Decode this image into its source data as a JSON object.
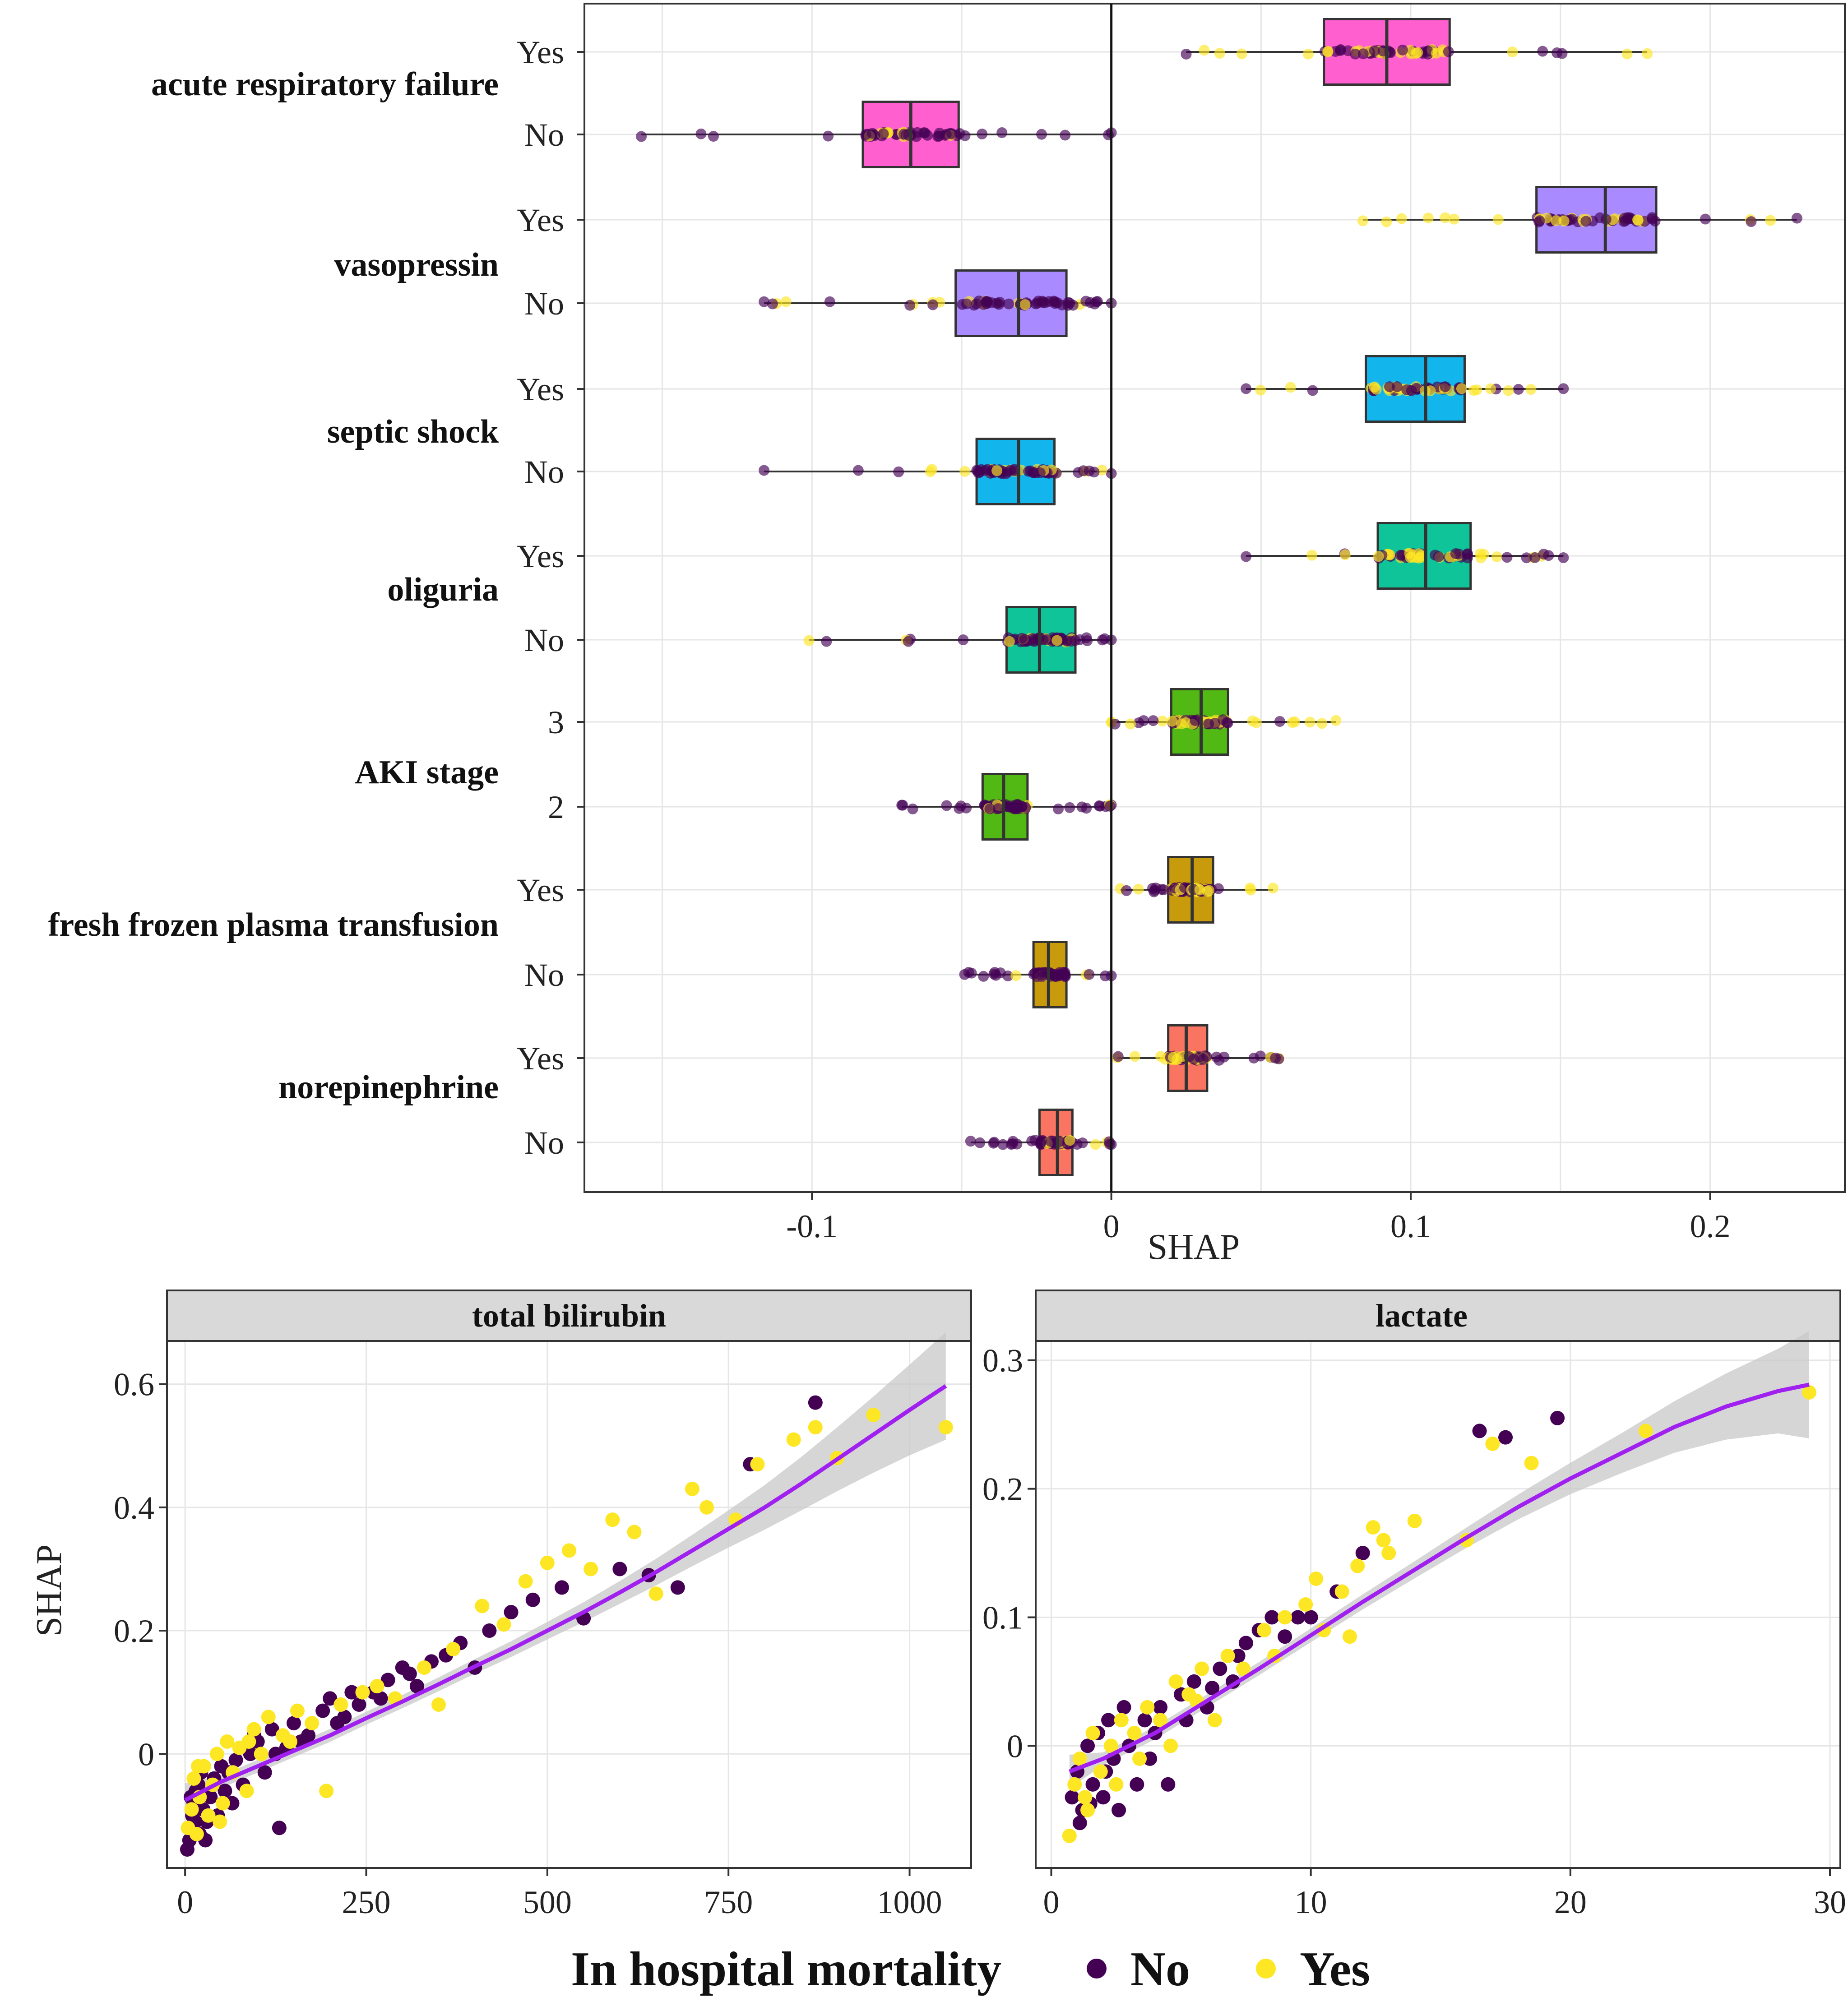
{
  "colors": {
    "no": "#440154",
    "yes": "#fde725",
    "smooth": "#a020f0",
    "band": "#c8c8c8",
    "strip": "#d9d9d9",
    "box_arf": "#ff5fcf",
    "box_vaso": "#a98bff",
    "box_septic": "#12b6ec",
    "box_oliguria": "#10c49a",
    "box_aki": "#52b813",
    "box_ffp": "#c89b0c",
    "box_norepi": "#fa7462"
  },
  "chart_data": [
    {
      "type": "box",
      "xlabel": "SHAP",
      "xlim": [
        -0.176,
        0.245
      ],
      "xticks": [
        -0.1,
        0,
        0.1,
        0.2
      ],
      "xtick_labels": [
        "-0.1",
        "0",
        "0.1",
        "0.2"
      ],
      "features": [
        {
          "name": "acute respiratory failure",
          "color_key": "box_arf",
          "levels": [
            {
              "label": "Yes",
              "min": 0.025,
              "q1": 0.071,
              "median": 0.092,
              "q3": 0.113,
              "max": 0.179
            },
            {
              "label": "No",
              "min": -0.157,
              "q1": -0.083,
              "median": -0.067,
              "q3": -0.051,
              "max": 0.0
            }
          ]
        },
        {
          "name": "vasopressin",
          "color_key": "box_vaso",
          "levels": [
            {
              "label": "Yes",
              "min": 0.084,
              "q1": 0.142,
              "median": 0.165,
              "q3": 0.182,
              "max": 0.229
            },
            {
              "label": "No",
              "min": -0.116,
              "q1": -0.052,
              "median": -0.031,
              "q3": -0.015,
              "max": 0.0
            }
          ]
        },
        {
          "name": "septic shock",
          "color_key": "box_septic",
          "levels": [
            {
              "label": "Yes",
              "min": 0.045,
              "q1": 0.085,
              "median": 0.105,
              "q3": 0.118,
              "max": 0.151
            },
            {
              "label": "No",
              "min": -0.116,
              "q1": -0.045,
              "median": -0.031,
              "q3": -0.019,
              "max": 0.0
            }
          ]
        },
        {
          "name": "oliguria",
          "color_key": "box_oliguria",
          "levels": [
            {
              "label": "Yes",
              "min": 0.045,
              "q1": 0.089,
              "median": 0.105,
              "q3": 0.12,
              "max": 0.151
            },
            {
              "label": "No",
              "min": -0.101,
              "q1": -0.035,
              "median": -0.024,
              "q3": -0.012,
              "max": 0.0
            }
          ]
        },
        {
          "name": "AKI stage",
          "color_key": "box_aki",
          "levels": [
            {
              "label": "3",
              "min": 0.0,
              "q1": 0.02,
              "median": 0.03,
              "q3": 0.039,
              "max": 0.075
            },
            {
              "label": "2",
              "min": -0.07,
              "q1": -0.043,
              "median": -0.036,
              "q3": -0.028,
              "max": 0.0
            }
          ]
        },
        {
          "name": "fresh frozen plasma transfusion",
          "color_key": "box_ffp",
          "levels": [
            {
              "label": "Yes",
              "min": 0.003,
              "q1": 0.019,
              "median": 0.027,
              "q3": 0.034,
              "max": 0.054
            },
            {
              "label": "No",
              "min": -0.049,
              "q1": -0.026,
              "median": -0.021,
              "q3": -0.015,
              "max": 0.0
            }
          ]
        },
        {
          "name": "norepinephrine",
          "color_key": "box_norepi",
          "levels": [
            {
              "label": "Yes",
              "min": 0.002,
              "q1": 0.019,
              "median": 0.025,
              "q3": 0.032,
              "max": 0.056
            },
            {
              "label": "No",
              "min": -0.047,
              "q1": -0.024,
              "median": -0.018,
              "q3": -0.013,
              "max": 0.0
            }
          ]
        }
      ]
    },
    {
      "type": "scatter",
      "title": "total bilirubin",
      "xlabel": "",
      "ylabel": "SHAP",
      "xlim": [
        -25,
        1085
      ],
      "ylim": [
        -0.185,
        0.67
      ],
      "xticks": [
        0,
        250,
        500,
        750,
        1000
      ],
      "xtick_labels": [
        "0",
        "250",
        "500",
        "750",
        "1000"
      ],
      "yticks": [
        0,
        0.2,
        0.4,
        0.6
      ],
      "ytick_labels": [
        "0",
        "0.2",
        "0.4",
        "0.6"
      ],
      "smooth": {
        "x": [
          0,
          50,
          100,
          150,
          200,
          250,
          300,
          350,
          400,
          450,
          500,
          550,
          600,
          650,
          700,
          750,
          800,
          850,
          900,
          950,
          1000,
          1050
        ],
        "y": [
          -0.075,
          -0.045,
          -0.02,
          0.005,
          0.03,
          0.058,
          0.085,
          0.113,
          0.142,
          0.17,
          0.2,
          0.23,
          0.262,
          0.295,
          0.33,
          0.365,
          0.4,
          0.438,
          0.478,
          0.518,
          0.558,
          0.597
        ]
      },
      "points_no": [
        [
          3,
          -0.155
        ],
        [
          6,
          -0.14
        ],
        [
          8,
          -0.12
        ],
        [
          10,
          -0.1
        ],
        [
          12,
          -0.08
        ],
        [
          15,
          -0.06
        ],
        [
          18,
          -0.05
        ],
        [
          20,
          -0.13
        ],
        [
          25,
          -0.09
        ],
        [
          30,
          -0.11
        ],
        [
          35,
          -0.07
        ],
        [
          40,
          -0.04
        ],
        [
          45,
          -0.1
        ],
        [
          50,
          -0.02
        ],
        [
          55,
          -0.06
        ],
        [
          60,
          -0.03
        ],
        [
          70,
          -0.01
        ],
        [
          80,
          -0.05
        ],
        [
          90,
          0.0
        ],
        [
          100,
          0.02
        ],
        [
          110,
          -0.03
        ],
        [
          120,
          0.04
        ],
        [
          130,
          -0.12
        ],
        [
          140,
          0.01
        ],
        [
          150,
          0.05
        ],
        [
          170,
          0.03
        ],
        [
          190,
          0.07
        ],
        [
          200,
          0.09
        ],
        [
          220,
          0.06
        ],
        [
          240,
          0.08
        ],
        [
          260,
          0.1
        ],
        [
          280,
          0.12
        ],
        [
          300,
          0.14
        ],
        [
          320,
          0.11
        ],
        [
          340,
          0.15
        ],
        [
          360,
          0.16
        ],
        [
          380,
          0.18
        ],
        [
          400,
          0.14
        ],
        [
          420,
          0.2
        ],
        [
          450,
          0.23
        ],
        [
          480,
          0.25
        ],
        [
          520,
          0.27
        ],
        [
          550,
          0.22
        ],
        [
          600,
          0.3
        ],
        [
          640,
          0.29
        ],
        [
          680,
          0.27
        ],
        [
          780,
          0.47
        ],
        [
          870,
          0.57
        ],
        [
          8,
          -0.07
        ],
        [
          14,
          -0.11
        ],
        [
          22,
          -0.03
        ],
        [
          28,
          -0.14
        ],
        [
          65,
          -0.08
        ],
        [
          95,
          0.03
        ],
        [
          125,
          0.0
        ],
        [
          160,
          0.02
        ],
        [
          210,
          0.05
        ],
        [
          230,
          0.1
        ],
        [
          270,
          0.09
        ],
        [
          310,
          0.13
        ]
      ],
      "points_yes": [
        [
          4,
          -0.12
        ],
        [
          9,
          -0.09
        ],
        [
          12,
          -0.04
        ],
        [
          16,
          -0.13
        ],
        [
          20,
          -0.07
        ],
        [
          26,
          -0.02
        ],
        [
          32,
          -0.1
        ],
        [
          38,
          -0.05
        ],
        [
          44,
          0.0
        ],
        [
          52,
          -0.08
        ],
        [
          58,
          0.02
        ],
        [
          66,
          -0.03
        ],
        [
          75,
          0.01
        ],
        [
          85,
          -0.06
        ],
        [
          95,
          0.04
        ],
        [
          105,
          0.0
        ],
        [
          115,
          0.06
        ],
        [
          135,
          0.03
        ],
        [
          155,
          0.07
        ],
        [
          175,
          0.05
        ],
        [
          195,
          -0.06
        ],
        [
          215,
          0.08
        ],
        [
          245,
          0.1
        ],
        [
          265,
          0.11
        ],
        [
          290,
          0.09
        ],
        [
          330,
          0.14
        ],
        [
          350,
          0.08
        ],
        [
          370,
          0.17
        ],
        [
          410,
          0.24
        ],
        [
          440,
          0.21
        ],
        [
          470,
          0.28
        ],
        [
          500,
          0.31
        ],
        [
          530,
          0.33
        ],
        [
          560,
          0.3
        ],
        [
          590,
          0.38
        ],
        [
          620,
          0.36
        ],
        [
          650,
          0.26
        ],
        [
          700,
          0.43
        ],
        [
          720,
          0.4
        ],
        [
          760,
          0.38
        ],
        [
          790,
          0.47
        ],
        [
          840,
          0.51
        ],
        [
          870,
          0.53
        ],
        [
          900,
          0.48
        ],
        [
          950,
          0.55
        ],
        [
          1050,
          0.53
        ],
        [
          18,
          -0.02
        ],
        [
          48,
          -0.11
        ],
        [
          88,
          0.02
        ],
        [
          145,
          0.02
        ]
      ]
    },
    {
      "type": "scatter",
      "title": "lactate",
      "xlabel": "",
      "ylabel": "",
      "xlim": [
        -0.6,
        30.4
      ],
      "ylim": [
        -0.095,
        0.315
      ],
      "xticks": [
        0,
        10,
        20,
        30
      ],
      "xtick_labels": [
        "0",
        "10",
        "20",
        "30"
      ],
      "yticks": [
        0,
        0.1,
        0.2,
        0.3
      ],
      "ytick_labels": [
        "0",
        "0.1",
        "0.2",
        "0.3"
      ],
      "smooth": {
        "x": [
          0.7,
          2,
          4,
          6,
          8,
          10,
          12,
          14,
          16,
          18,
          20,
          22,
          24,
          26,
          28,
          29.2
        ],
        "y": [
          -0.02,
          -0.01,
          0.01,
          0.035,
          0.06,
          0.086,
          0.112,
          0.137,
          0.162,
          0.186,
          0.208,
          0.228,
          0.248,
          0.264,
          0.276,
          0.281
        ]
      },
      "points_no": [
        [
          0.8,
          -0.04
        ],
        [
          1,
          -0.02
        ],
        [
          1.2,
          -0.05
        ],
        [
          1.4,
          0.0
        ],
        [
          1.6,
          -0.03
        ],
        [
          1.8,
          0.01
        ],
        [
          2,
          -0.04
        ],
        [
          2.2,
          0.02
        ],
        [
          2.4,
          -0.01
        ],
        [
          2.6,
          -0.05
        ],
        [
          2.8,
          0.03
        ],
        [
          3,
          0.0
        ],
        [
          3.3,
          -0.03
        ],
        [
          3.6,
          0.02
        ],
        [
          4,
          0.01
        ],
        [
          4.5,
          -0.03
        ],
        [
          5,
          0.04
        ],
        [
          5.5,
          0.05
        ],
        [
          6,
          0.03
        ],
        [
          6.5,
          0.06
        ],
        [
          7,
          0.05
        ],
        [
          7.5,
          0.08
        ],
        [
          8,
          0.09
        ],
        [
          8.5,
          0.1
        ],
        [
          9,
          0.085
        ],
        [
          10,
          0.1
        ],
        [
          11,
          0.12
        ],
        [
          12,
          0.15
        ],
        [
          16.5,
          0.245
        ],
        [
          17.5,
          0.24
        ],
        [
          19.5,
          0.255
        ],
        [
          1.1,
          -0.06
        ],
        [
          1.5,
          -0.045
        ],
        [
          2.1,
          -0.02
        ],
        [
          3.8,
          -0.01
        ],
        [
          4.2,
          0.03
        ],
        [
          5.2,
          0.02
        ],
        [
          6.2,
          0.045
        ],
        [
          7.2,
          0.07
        ],
        [
          9.5,
          0.1
        ]
      ],
      "points_yes": [
        [
          0.7,
          -0.07
        ],
        [
          0.9,
          -0.03
        ],
        [
          1.1,
          -0.01
        ],
        [
          1.3,
          -0.04
        ],
        [
          1.6,
          0.01
        ],
        [
          1.9,
          -0.02
        ],
        [
          2.3,
          0.0
        ],
        [
          2.7,
          0.02
        ],
        [
          3.2,
          0.01
        ],
        [
          3.7,
          0.03
        ],
        [
          4.2,
          0.02
        ],
        [
          4.8,
          0.05
        ],
        [
          5.3,
          0.04
        ],
        [
          5.8,
          0.06
        ],
        [
          6.3,
          0.02
        ],
        [
          6.8,
          0.07
        ],
        [
          7.4,
          0.06
        ],
        [
          8.2,
          0.09
        ],
        [
          9,
          0.1
        ],
        [
          9.8,
          0.11
        ],
        [
          10.5,
          0.09
        ],
        [
          11.2,
          0.12
        ],
        [
          11.8,
          0.14
        ],
        [
          12.4,
          0.17
        ],
        [
          13,
          0.15
        ],
        [
          14,
          0.175
        ],
        [
          16,
          0.16
        ],
        [
          17,
          0.235
        ],
        [
          18.5,
          0.22
        ],
        [
          29.2,
          0.275
        ],
        [
          1.4,
          -0.05
        ],
        [
          2.5,
          -0.03
        ],
        [
          3.4,
          -0.01
        ],
        [
          4.6,
          0.0
        ],
        [
          5.6,
          0.035
        ],
        [
          8.6,
          0.07
        ],
        [
          10.2,
          0.13
        ],
        [
          11.5,
          0.085
        ],
        [
          22.9,
          0.245
        ],
        [
          12.8,
          0.16
        ]
      ]
    }
  ],
  "legend": {
    "title": "In hospital mortality",
    "items": [
      "No",
      "Yes"
    ]
  }
}
